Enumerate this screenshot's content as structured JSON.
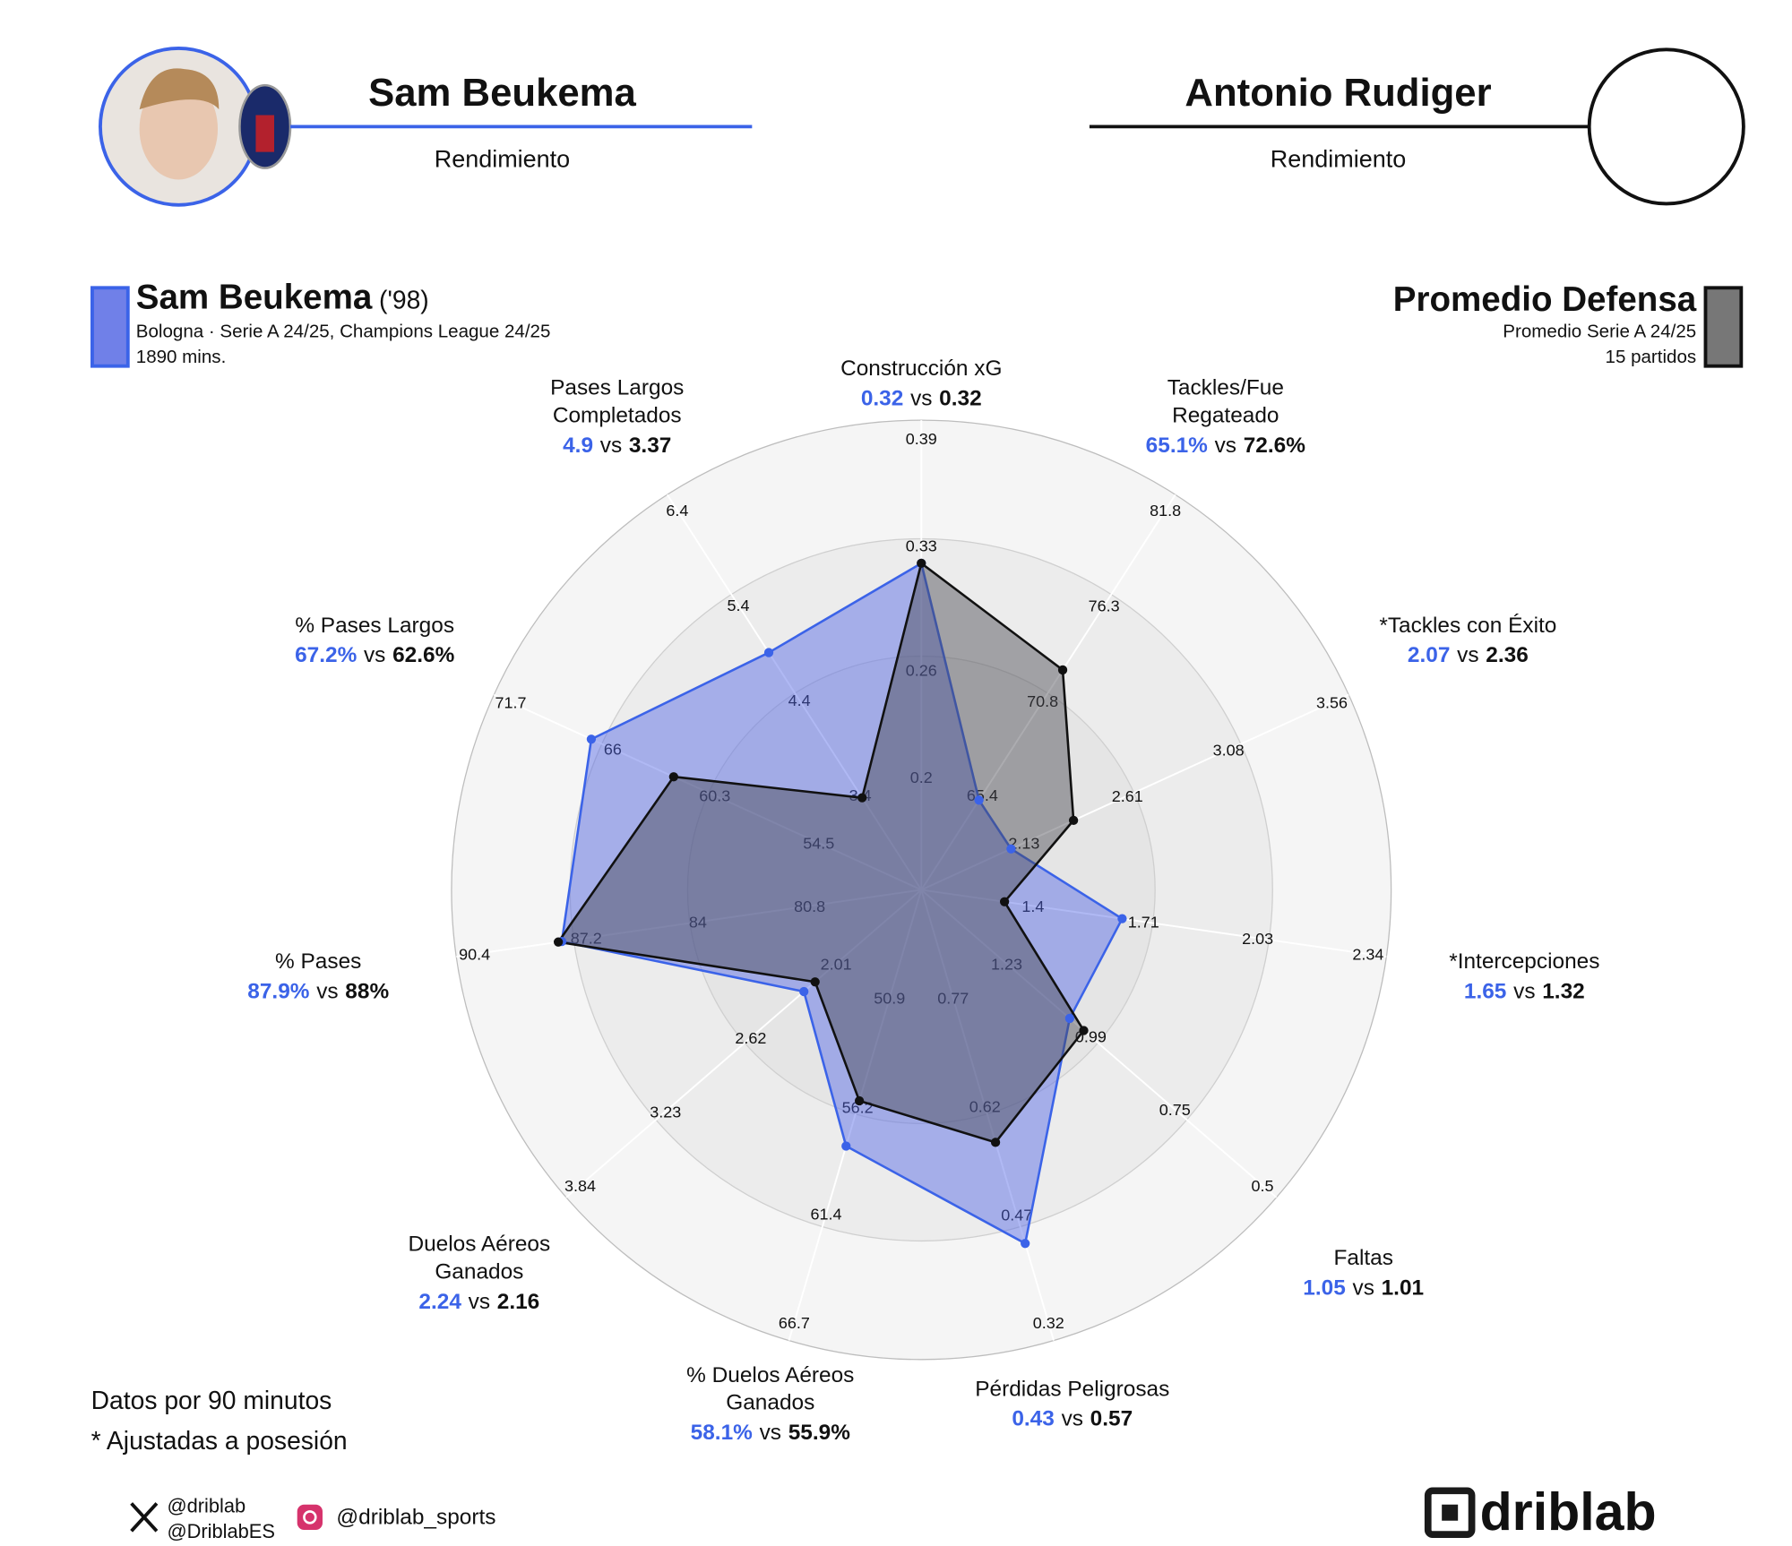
{
  "header": {
    "left": {
      "name": "Sam Beukema",
      "subtitle": "Rendimiento"
    },
    "right": {
      "name": "Antonio Rudiger",
      "subtitle": "Rendimiento"
    }
  },
  "legend": {
    "left": {
      "born": "('98)",
      "competitions": "Bologna · Serie A 24/25, Champions League 24/25",
      "minutes": "1890 mins."
    },
    "right": {
      "competitions": "Promedio Serie A 24/25",
      "matches": "15 partidos"
    }
  },
  "chart_data": {
    "type": "radar",
    "separator": "vs",
    "axes": [
      {
        "label": [
          "Construcción xG"
        ],
        "lim": [
          0.2,
          0.39
        ],
        "ticks": [
          0.2,
          0.26,
          0.33,
          0.39
        ]
      },
      {
        "label": [
          "Tackles/Fue",
          "Regateado"
        ],
        "lim": [
          65.4,
          81.8
        ],
        "ticks": [
          65.4,
          70.8,
          76.3,
          81.8
        ]
      },
      {
        "label": [
          "*Tackles con Éxito"
        ],
        "lim": [
          2.13,
          3.56
        ],
        "ticks": [
          2.13,
          2.61,
          3.08,
          3.56
        ]
      },
      {
        "label": [
          "*Intercepciones"
        ],
        "lim": [
          1.4,
          2.34
        ],
        "ticks": [
          1.4,
          1.71,
          2.03,
          2.34
        ]
      },
      {
        "label": [
          "Faltas"
        ],
        "lim": [
          1.23,
          0.5
        ],
        "ticks": [
          1.23,
          0.99,
          0.75,
          0.5
        ]
      },
      {
        "label": [
          "Pérdidas Peligrosas"
        ],
        "lim": [
          0.77,
          0.32
        ],
        "ticks": [
          0.77,
          0.62,
          0.47,
          0.32
        ]
      },
      {
        "label": [
          "% Duelos Aéreos",
          "Ganados"
        ],
        "lim": [
          50.9,
          66.7
        ],
        "ticks": [
          50.9,
          56.2,
          61.4,
          66.7
        ]
      },
      {
        "label": [
          "Duelos Aéreos",
          "Ganados"
        ],
        "lim": [
          2.01,
          3.84
        ],
        "ticks": [
          2.01,
          2.62,
          3.23,
          3.84
        ]
      },
      {
        "label": [
          "% Pases"
        ],
        "lim": [
          80.8,
          90.4
        ],
        "ticks": [
          80.8,
          84,
          87.2,
          90.4
        ]
      },
      {
        "label": [
          "% Pases Largos"
        ],
        "lim": [
          54.5,
          71.7
        ],
        "ticks": [
          54.5,
          60.3,
          66,
          71.7
        ]
      },
      {
        "label": [
          "Pases Largos",
          "Completados"
        ],
        "lim": [
          3.4,
          6.4
        ],
        "ticks": [
          3.4,
          4.4,
          5.4,
          6.4
        ]
      }
    ],
    "series": [
      {
        "name": "Sam Beukema",
        "color": "#3b63e8",
        "values": [
          0.32,
          65.1,
          2.07,
          1.65,
          1.05,
          0.43,
          58.1,
          2.24,
          87.9,
          67.2,
          4.9
        ],
        "value_labels": [
          "0.32",
          "65.1%",
          "2.07",
          "1.65",
          "1.05",
          "0.43",
          "58.1%",
          "2.24",
          "87.9%",
          "67.2%",
          "4.9"
        ]
      },
      {
        "name": "Promedio Defensa",
        "color": "#111111",
        "values": [
          0.32,
          72.6,
          2.36,
          1.32,
          1.01,
          0.57,
          55.9,
          2.16,
          88,
          62.6,
          3.37
        ],
        "value_labels": [
          "0.32",
          "72.6%",
          "2.36",
          "1.32",
          "1.01",
          "0.57",
          "55.9%",
          "2.16",
          "88%",
          "62.6%",
          "3.37"
        ]
      }
    ]
  },
  "notes": [
    "Datos por 90 minutos",
    "* Ajustadas a posesión"
  ],
  "social": {
    "x": [
      "@driblab",
      "@DriblabES"
    ],
    "instagram": "@driblab_sports"
  },
  "logo": "driblab"
}
